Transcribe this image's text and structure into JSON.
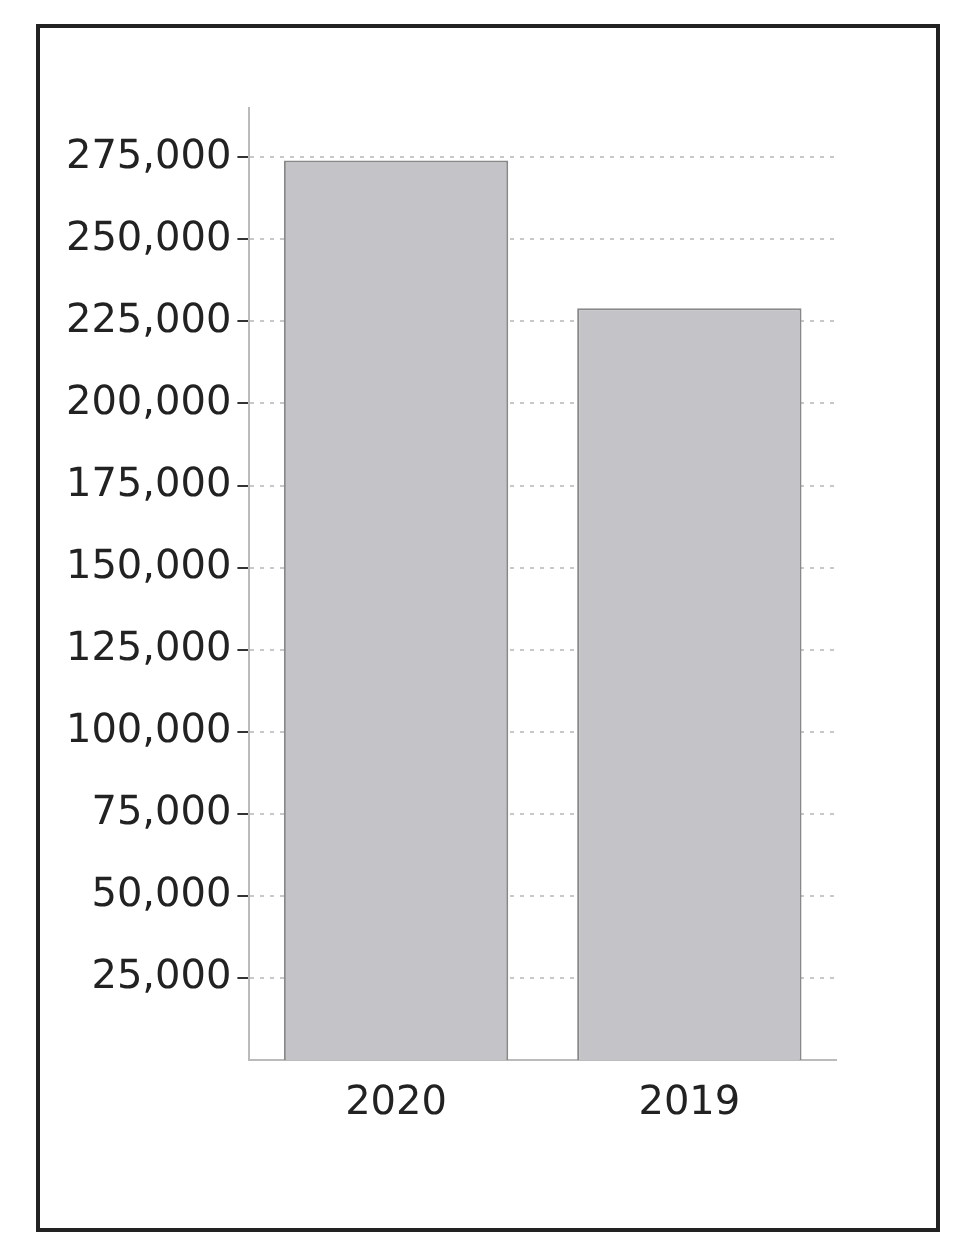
{
  "chart_data": {
    "type": "bar",
    "categories": [
      "2020",
      "2019"
    ],
    "values": [
      274000,
      229000
    ],
    "color": "#c4c4c8",
    "ylim": [
      0,
      290000
    ],
    "yticks": [
      {
        "value": 25000,
        "label": "25,000"
      },
      {
        "value": 50000,
        "label": "50,000"
      },
      {
        "value": 75000,
        "label": "75,000"
      },
      {
        "value": 100000,
        "label": "100,000"
      },
      {
        "value": 125000,
        "label": "125,000"
      },
      {
        "value": 150000,
        "label": "150,000"
      },
      {
        "value": 175000,
        "label": "175,000"
      },
      {
        "value": 200000,
        "label": "200,000"
      },
      {
        "value": 225000,
        "label": "225,000"
      },
      {
        "value": 250000,
        "label": "250,000"
      },
      {
        "value": 275000,
        "label": "275,000"
      }
    ],
    "grid": "y"
  }
}
